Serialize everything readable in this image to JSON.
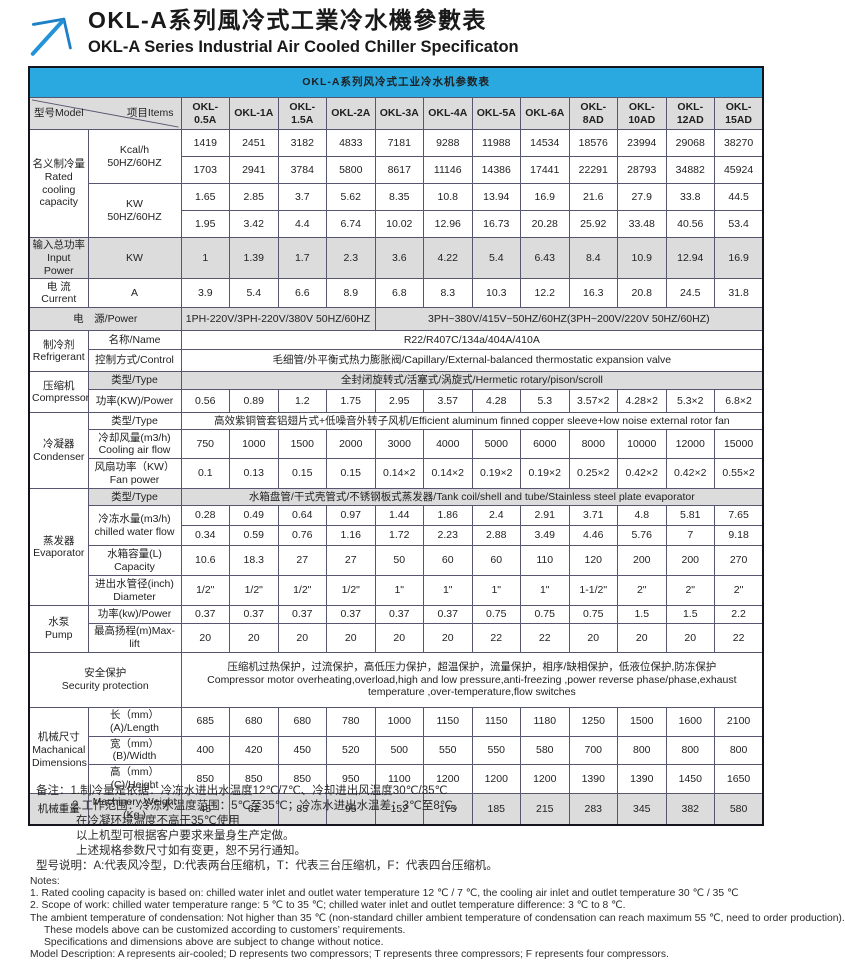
{
  "page": {
    "title_zh": "OKL-A系列風冷式工業冷水機參數表",
    "title_en": "OKL-A Series Industrial Air Cooled Chiller Specificaton"
  },
  "colors": {
    "accent_blue": "#29a9e0",
    "shade_gray": "#dcdcdc",
    "logo_blue": "#1d7fc6"
  },
  "icons": {
    "logo": "arrow-up-right-icon"
  },
  "table": {
    "title": "OKL-A系列风冷式工业冷水机参数表",
    "corner": {
      "model": "型号Model",
      "items": "项目Items"
    },
    "models": [
      "OKL-0.5A",
      "OKL-1A",
      "OKL-1.5A",
      "OKL-2A",
      "OKL-3A",
      "OKL-4A",
      "OKL-5A",
      "OKL-6A",
      "OKL-8AD",
      "OKL-10AD",
      "OKL-12AD",
      "OKL-15AD"
    ],
    "sections": [
      {
        "cat": "名义制冷量\nRated cooling capacity",
        "rows": [
          {
            "h": 27,
            "item": "Kcal/h\n50HZ/60HZ",
            "item_rs": 2,
            "values": [
              "1419",
              "2451",
              "3182",
              "4833",
              "7181",
              "9288",
              "11988",
              "14534",
              "18576",
              "23994",
              "29068",
              "38270"
            ]
          },
          {
            "h": 27,
            "values": [
              "1703",
              "2941",
              "3784",
              "5800",
              "8617",
              "11146",
              "14386",
              "17441",
              "22291",
              "28793",
              "34882",
              "45924"
            ]
          },
          {
            "h": 27,
            "item": "KW\n50HZ/60HZ",
            "item_rs": 2,
            "values": [
              "1.65",
              "2.85",
              "3.7",
              "5.62",
              "8.35",
              "10.8",
              "13.94",
              "16.9",
              "21.6",
              "27.9",
              "33.8",
              "44.5"
            ]
          },
          {
            "h": 27,
            "values": [
              "1.95",
              "3.42",
              "4.4",
              "6.74",
              "10.02",
              "12.96",
              "16.73",
              "20.28",
              "25.92",
              "33.48",
              "40.56",
              "53.4"
            ]
          }
        ]
      },
      {
        "cat": "输入总功率\nInput Power",
        "shaded": true,
        "rows": [
          {
            "h": 30,
            "shaded": true,
            "item": "KW",
            "values": [
              "1",
              "1.39",
              "1.7",
              "2.3",
              "3.6",
              "4.22",
              "5.4",
              "6.43",
              "8.4",
              "10.9",
              "12.94",
              "16.9"
            ]
          }
        ]
      },
      {
        "cat": "电 流\nCurrent",
        "rows": [
          {
            "h": 29,
            "item": "A",
            "values": [
              "3.9",
              "5.4",
              "6.6",
              "8.9",
              "6.8",
              "8.3",
              "10.3",
              "12.2",
              "16.3",
              "20.8",
              "24.5",
              "31.8"
            ]
          }
        ]
      },
      {
        "merged_label": "电　源/Power",
        "shaded": true,
        "rows": [
          {
            "h": 23,
            "shaded": true,
            "values": [
              {
                "text": "1PH-220V/3PH-220V/380V 50HZ/60HZ",
                "span": 4
              },
              {
                "text": "3PH~380V/415V~50HZ/60HZ(3PH~200V/220V  50HZ/60HZ)",
                "span": 8
              }
            ]
          }
        ]
      },
      {
        "cat": "制冷剂\nRefrigerant",
        "rows": [
          {
            "h": 19,
            "item": "名称/Name",
            "values": [
              {
                "text": "R22/R407C/134a/404A/410A",
                "span": 12
              }
            ]
          },
          {
            "h": 22,
            "item": "控制方式/Control",
            "values": [
              {
                "text": "毛细管/外平衡式热力膨胀阀/Capillary/External-balanced thermostatic expansion valve",
                "span": 12
              }
            ]
          }
        ]
      },
      {
        "cat": "压缩机\nCompressor",
        "rows": [
          {
            "h": 18,
            "shaded": true,
            "item": "类型/Type",
            "values": [
              {
                "text": "全封闭旋转式/活塞式/涡旋式/Hermetic rotary/pison/scroll",
                "span": 12
              }
            ]
          },
          {
            "h": 23,
            "item": "功率(KW)/Power",
            "values": [
              "0.56",
              "0.89",
              "1.2",
              "1.75",
              "2.95",
              "3.57",
              "4.28",
              "5.3",
              "3.57×2",
              "4.28×2",
              "5.3×2",
              "6.8×2"
            ]
          }
        ]
      },
      {
        "cat": "冷凝器\nCondenser",
        "rows": [
          {
            "h": 17,
            "item": "类型/Type",
            "values": [
              {
                "text": "高效紫铜管套铝翅片式+低噪音外转子风机/Efficient aluminum finned copper sleeve+low noise external rotor fan",
                "span": 12
              }
            ]
          },
          {
            "h": 29,
            "item": "冷却风量(m3/h)\nCooling air flow",
            "values": [
              "750",
              "1000",
              "1500",
              "2000",
              "3000",
              "4000",
              "5000",
              "6000",
              "8000",
              "10000",
              "12000",
              "15000"
            ]
          },
          {
            "h": 30,
            "item": "风扇功率（KW）\nFan power",
            "values": [
              "0.1",
              "0.13",
              "0.15",
              "0.15",
              "0.14×2",
              "0.14×2",
              "0.19×2",
              "0.19×2",
              "0.25×2",
              "0.42×2",
              "0.42×2",
              "0.55×2"
            ]
          }
        ]
      },
      {
        "cat": "蒸发器\nEvaporator",
        "rows": [
          {
            "h": 17,
            "shaded": true,
            "item": "类型/Type",
            "values": [
              {
                "text": "水箱盘管/干式壳管式/不锈钢板式蒸发器/Tank coil/shell and tube/Stainless steel plate evaporator",
                "span": 12
              }
            ]
          },
          {
            "h": 20,
            "item": "冷冻水量(m3/h)\nchilled water flow",
            "item_rs": 2,
            "values": [
              "0.28",
              "0.49",
              "0.64",
              "0.97",
              "1.44",
              "1.86",
              "2.4",
              "2.91",
              "3.71",
              "4.8",
              "5.81",
              "7.65"
            ]
          },
          {
            "h": 20,
            "values": [
              "0.34",
              "0.59",
              "0.76",
              "1.16",
              "1.72",
              "2.23",
              "2.88",
              "3.49",
              "4.46",
              "5.76",
              "7",
              "9.18"
            ]
          },
          {
            "h": 30,
            "item": "水箱容量(L)\nCapacity",
            "values": [
              "10.6",
              "18.3",
              "27",
              "27",
              "50",
              "60",
              "60",
              "110",
              "120",
              "200",
              "200",
              "270"
            ]
          },
          {
            "h": 30,
            "item": "进出水管径(inch)\nDiameter",
            "values": [
              "1/2\"",
              "1/2\"",
              "1/2\"",
              "1/2\"",
              "1\"",
              "1\"",
              "1\"",
              "1\"",
              "1-1/2\"",
              "2\"",
              "2\"",
              "2\""
            ]
          }
        ]
      },
      {
        "cat": "水泵\nPump",
        "rows": [
          {
            "h": 18,
            "item": "功率(kw)/Power",
            "values": [
              "0.37",
              "0.37",
              "0.37",
              "0.37",
              "0.37",
              "0.37",
              "0.75",
              "0.75",
              "0.75",
              "1.5",
              "1.5",
              "2.2"
            ]
          },
          {
            "h": 17,
            "item": "最高扬程(m)Max-lift",
            "values": [
              "20",
              "20",
              "20",
              "20",
              "20",
              "20",
              "22",
              "22",
              "20",
              "20",
              "20",
              "22"
            ]
          }
        ]
      },
      {
        "merged_label": "安全保护\nSecurity protection",
        "rows": [
          {
            "h": 55,
            "values": [
              {
                "span": 12,
                "align": "left",
                "lines": [
                  "压缩机过热保护，过流保护，高低压力保护，超温保护，流量保护，相序/缺相保护，低液位保护,防冻保护",
                  "Compressor motor overheating,overload,high and low pressure,anti-freezing ,power reverse phase/phase,exhaust temperature ,over-temperature,flow switches"
                ]
              }
            ]
          }
        ]
      },
      {
        "cat": "机械尺寸\nMachanical Dimensions",
        "rows": [
          {
            "h": 21,
            "item": "长（mm）(A)/Length",
            "values": [
              "685",
              "680",
              "680",
              "780",
              "1000",
              "1150",
              "1150",
              "1180",
              "1250",
              "1500",
              "1600",
              "2100"
            ]
          },
          {
            "h": 20,
            "item": "宽（mm）(B)/Width",
            "values": [
              "400",
              "420",
              "450",
              "520",
              "500",
              "550",
              "550",
              "580",
              "700",
              "800",
              "800",
              "800"
            ]
          },
          {
            "h": 21,
            "item": "高（mm）(C)/Height",
            "values": [
              "850",
              "850",
              "850",
              "950",
              "1100",
              "1200",
              "1200",
              "1200",
              "1390",
              "1390",
              "1450",
              "1650"
            ]
          }
        ]
      },
      {
        "cat": "机械重量",
        "shaded": true,
        "rows": [
          {
            "h": 32,
            "shaded": true,
            "item": "Machinery Weight\n(Kg )",
            "values": [
              "45",
              "62",
              "85",
              "95",
              "152",
              "175",
              "185",
              "215",
              "283",
              "345",
              "382",
              "580"
            ]
          }
        ]
      }
    ]
  },
  "notes_zh": [
    {
      "t": "备注：1.制冷量是依据：冷冻水进出水温度12℃/7℃、冷却进出风温度30℃/35℃",
      "ind": 0
    },
    {
      "t": "2.工作范围：冷冻水温度范围：5℃至35℃；冷冻水进出水温差：3℃至8℃。",
      "ind": 36
    },
    {
      "t": "在冷凝环境温度不高于35℃使用",
      "ind": 40
    },
    {
      "t": "以上机型可根据客户要求来量身生产定做。",
      "ind": 40
    },
    {
      "t": "上述规格参数尺寸如有变更，恕不另行通知。",
      "ind": 40
    },
    {
      "t": "型号说明：A:代表风冷型，D:代表两台压缩机，T：代表三台压缩机，F：代表四台压缩机。",
      "ind": 0
    }
  ],
  "notes_en": [
    {
      "t": "Notes:",
      "ind": 0
    },
    {
      "t": "1. Rated cooling capacity is based on: chilled water inlet and outlet water temperature 12 ℃ / 7 ℃, the cooling air inlet and outlet temperature 30 ℃ / 35 ℃",
      "ind": 0
    },
    {
      "t": "2. Scope of work: chilled water temperature range: 5 ℃ to 35 ℃; chilled water inlet and outlet temperature difference: 3 ℃ to 8 ℃.",
      "ind": 0
    },
    {
      "t": "The ambient temperature of condensation: Not higher than 35 ℃ (non-standard chiller ambient temperature of condensation can reach maximum 55 ℃, need to order production).",
      "ind": 0
    },
    {
      "t": "These models above can be customized according to customers’  requirements.",
      "ind": 14
    },
    {
      "t": "Specifications and dimensions above are subject to change without notice.",
      "ind": 14
    },
    {
      "t": "Model Description: A represents air-cooled; D represents two compressors; T represents three compressors; F represents four compressors.",
      "ind": 0
    }
  ]
}
